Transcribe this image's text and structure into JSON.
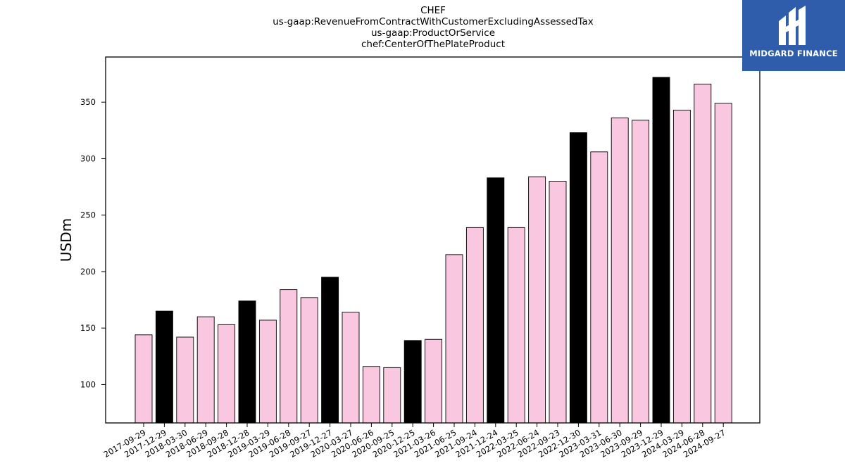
{
  "title_lines": [
    "CHEF",
    "us-gaap:RevenueFromContractWithCustomerExcludingAssessedTax",
    "us-gaap:ProductOrService",
    "chef:CenterOfThePlateProduct"
  ],
  "logo": {
    "text": "MIDGARD FINANCE",
    "bg_color": "#2f5dab"
  },
  "chart_data": {
    "type": "bar",
    "ylabel": "USDm",
    "ylim": [
      66,
      390
    ],
    "yticks": [
      100,
      150,
      200,
      250,
      300,
      350
    ],
    "grid": false,
    "colors": {
      "quarter": "#f9c8e0",
      "fiscal_year_end": "#000000",
      "edge": "#000000"
    },
    "categories": [
      "2017-09-29",
      "2017-12-29",
      "2018-03-30",
      "2018-06-29",
      "2018-09-28",
      "2018-12-28",
      "2019-03-29",
      "2019-06-28",
      "2019-09-27",
      "2019-12-27",
      "2020-03-27",
      "2020-06-26",
      "2020-09-25",
      "2020-12-25",
      "2021-03-26",
      "2021-06-25",
      "2021-09-24",
      "2021-12-24",
      "2022-03-25",
      "2022-06-24",
      "2022-09-23",
      "2022-12-30",
      "2023-03-31",
      "2023-06-30",
      "2023-09-29",
      "2023-12-29",
      "2024-03-29",
      "2024-06-28",
      "2024-09-27"
    ],
    "values": [
      144,
      165,
      142,
      160,
      153,
      174,
      157,
      184,
      177,
      195,
      164,
      116,
      115,
      139,
      140,
      215,
      239,
      283,
      239,
      284,
      280,
      323,
      306,
      336,
      334,
      372,
      343,
      366,
      349
    ],
    "highlight": [
      false,
      true,
      false,
      false,
      false,
      true,
      false,
      false,
      false,
      true,
      false,
      false,
      false,
      true,
      false,
      false,
      false,
      true,
      false,
      false,
      false,
      true,
      false,
      false,
      false,
      true,
      false,
      false,
      false
    ]
  }
}
